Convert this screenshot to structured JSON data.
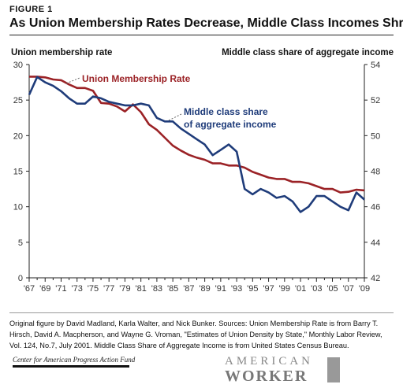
{
  "header": {
    "figure_label": "FIGURE 1",
    "title": "As Union Membership Rates Decrease, Middle Class Incomes Shrink"
  },
  "axes": {
    "left_title": "Union membership rate",
    "right_title": "Middle class share of aggregate income"
  },
  "chart_data": {
    "type": "line",
    "x_tick_labels": [
      "'67",
      "'69",
      "'71",
      "'73",
      "'75",
      "'77",
      "'79",
      "'81",
      "'83",
      "'85",
      "'87",
      "'89",
      "'91",
      "'93",
      "'95",
      "'97",
      "'99",
      "'01",
      "'03",
      "'05",
      "'07",
      "'09"
    ],
    "y_left_ticks": [
      "0",
      "5",
      "10",
      "15",
      "20",
      "25",
      "30"
    ],
    "y_right_ticks": [
      "42",
      "44",
      "46",
      "48",
      "50",
      "52",
      "54"
    ],
    "y_left_lim": [
      0,
      30
    ],
    "y_right_lim": [
      42,
      54
    ],
    "x": [
      1967,
      1968,
      1969,
      1970,
      1971,
      1972,
      1973,
      1974,
      1975,
      1976,
      1977,
      1978,
      1979,
      1980,
      1981,
      1982,
      1983,
      1984,
      1985,
      1986,
      1987,
      1988,
      1989,
      1990,
      1991,
      1992,
      1993,
      1994,
      1995,
      1996,
      1997,
      1998,
      1999,
      2000,
      2001,
      2002,
      2003,
      2004,
      2005,
      2006,
      2007,
      2008,
      2009
    ],
    "series": [
      {
        "name": "Union Membership Rate",
        "axis": "left",
        "color": "#9b2226",
        "values": [
          28.3,
          28.3,
          28.2,
          27.9,
          27.8,
          27.2,
          26.7,
          26.7,
          26.3,
          24.6,
          24.5,
          24.1,
          23.4,
          24.4,
          23.3,
          21.6,
          20.8,
          19.7,
          18.6,
          17.9,
          17.3,
          16.9,
          16.6,
          16.1,
          16.1,
          15.8,
          15.8,
          15.5,
          14.9,
          14.5,
          14.1,
          13.9,
          13.9,
          13.5,
          13.5,
          13.3,
          12.9,
          12.5,
          12.5,
          12.0,
          12.1,
          12.4,
          12.3
        ]
      },
      {
        "name": "Middle class share of aggregate income",
        "axis": "right",
        "color": "#1f3c7a",
        "values": [
          52.3,
          53.3,
          53.0,
          52.8,
          52.5,
          52.1,
          51.8,
          51.8,
          52.2,
          52.1,
          51.9,
          51.8,
          51.7,
          51.7,
          51.8,
          51.7,
          51.0,
          50.8,
          50.8,
          50.4,
          50.1,
          49.8,
          49.5,
          48.9,
          49.2,
          49.5,
          49.1,
          47.0,
          46.7,
          47.0,
          46.8,
          46.5,
          46.6,
          46.3,
          45.7,
          46.0,
          46.6,
          46.6,
          46.3,
          46.0,
          45.8,
          46.8,
          46.4
        ]
      }
    ],
    "annotations": [
      {
        "text": "Union Membership Rate",
        "series": 0
      },
      {
        "text": "Middle class share",
        "series": 1
      },
      {
        "text": "of aggregate income",
        "series": 1
      }
    ],
    "grid": false
  },
  "footer": {
    "source_text": "Original figure by David Madland, Karla Walter, and Nick Bunker. Sources: Union Membership Rate is from Barry T. Hirsch, David A. Macpherson, and Wayne G. Vroman, \"Estimates of Union Density by State,\" Monthly Labor Review, Vol. 124, No.7, July 2001. Middle Class Share of Aggregate Income is from United States Census Bureau.",
    "logo_left": "Center for American Progress Action Fund",
    "logo_right_top": "AMERICAN",
    "logo_right_bottom": "WORKER"
  }
}
